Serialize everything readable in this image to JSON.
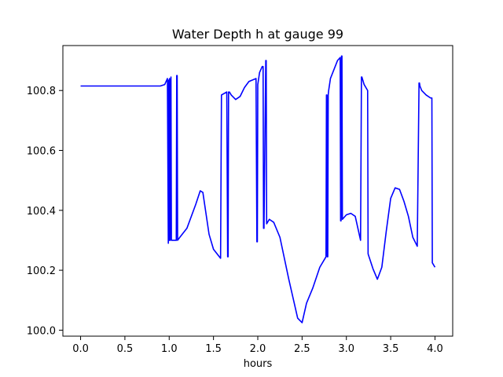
{
  "chart_data": {
    "type": "line",
    "title": "Water Depth h at gauge 99",
    "xlabel": "hours",
    "ylabel": "",
    "xlim": [
      -0.2,
      4.2
    ],
    "ylim": [
      99.98,
      100.95
    ],
    "grid": false,
    "xticks": [
      0.0,
      0.5,
      1.0,
      1.5,
      2.0,
      2.5,
      3.0,
      3.5,
      4.0
    ],
    "xtick_labels": [
      "0.0",
      "0.5",
      "1.0",
      "1.5",
      "2.0",
      "2.5",
      "3.0",
      "3.5",
      "4.0"
    ],
    "yticks": [
      100.0,
      100.2,
      100.4,
      100.6,
      100.8
    ],
    "ytick_labels": [
      "100.0",
      "100.2",
      "100.4",
      "100.6",
      "100.8"
    ],
    "series": [
      {
        "color": "#0000ff",
        "x": [
          0.0,
          0.5,
          0.9,
          0.95,
          0.98,
          0.99,
          0.995,
          1.0,
          1.005,
          1.01,
          1.02,
          1.025,
          1.03,
          1.035,
          1.04,
          1.045,
          1.05,
          1.08,
          1.085,
          1.09,
          1.095,
          1.12,
          1.2,
          1.3,
          1.35,
          1.38,
          1.45,
          1.5,
          1.58,
          1.59,
          1.65,
          1.66,
          1.665,
          1.67,
          1.675,
          1.68,
          1.7,
          1.75,
          1.8,
          1.85,
          1.9,
          1.98,
          1.99,
          1.995,
          2.0,
          2.02,
          2.05,
          2.06,
          2.065,
          2.07,
          2.09,
          2.095,
          2.1,
          2.13,
          2.18,
          2.25,
          2.35,
          2.45,
          2.5,
          2.55,
          2.62,
          2.7,
          2.77,
          2.775,
          2.78,
          2.785,
          2.79,
          2.795,
          2.8,
          2.82,
          2.9,
          2.93,
          2.935,
          2.94,
          2.945,
          2.95,
          2.955,
          3.0,
          3.05,
          3.1,
          3.16,
          3.17,
          3.175,
          3.2,
          3.24,
          3.245,
          3.25,
          3.3,
          3.35,
          3.4,
          3.45,
          3.5,
          3.55,
          3.6,
          3.65,
          3.7,
          3.75,
          3.8,
          3.82,
          3.825,
          3.83,
          3.85,
          3.9,
          3.95,
          3.965,
          3.97,
          4.0
        ],
        "y": [
          100.815,
          100.815,
          100.815,
          100.82,
          100.84,
          100.29,
          100.835,
          100.3,
          100.84,
          100.3,
          100.845,
          100.3,
          100.3,
          100.3,
          100.3,
          100.3,
          100.3,
          100.3,
          100.85,
          100.85,
          100.3,
          100.31,
          100.34,
          100.42,
          100.465,
          100.46,
          100.32,
          100.27,
          100.24,
          100.785,
          100.795,
          100.245,
          100.245,
          100.795,
          100.795,
          100.795,
          100.785,
          100.77,
          100.78,
          100.81,
          100.83,
          100.84,
          100.295,
          100.295,
          100.82,
          100.86,
          100.88,
          100.88,
          100.34,
          100.34,
          100.9,
          100.9,
          100.355,
          100.37,
          100.36,
          100.31,
          100.17,
          100.04,
          100.025,
          100.09,
          100.14,
          100.21,
          100.245,
          100.785,
          100.785,
          100.245,
          100.245,
          100.785,
          100.8,
          100.84,
          100.9,
          100.91,
          100.365,
          100.365,
          100.915,
          100.915,
          100.37,
          100.385,
          100.39,
          100.38,
          100.3,
          100.845,
          100.845,
          100.82,
          100.8,
          100.255,
          100.25,
          100.205,
          100.17,
          100.21,
          100.33,
          100.44,
          100.475,
          100.47,
          100.43,
          100.38,
          100.31,
          100.28,
          100.825,
          100.825,
          100.815,
          100.8,
          100.785,
          100.775,
          100.775,
          100.225,
          100.21
        ]
      }
    ]
  }
}
